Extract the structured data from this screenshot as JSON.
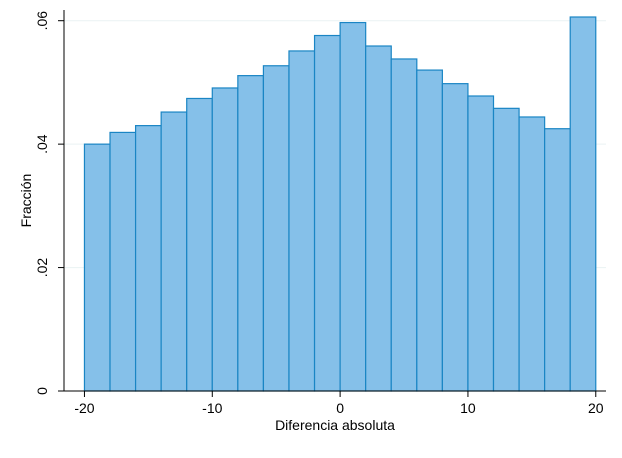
{
  "chart_data": {
    "type": "bar",
    "histogram": true,
    "bin_width": 2,
    "bins": [
      {
        "start": -20,
        "end": -18,
        "value": 0.04
      },
      {
        "start": -18,
        "end": -16,
        "value": 0.0419
      },
      {
        "start": -16,
        "end": -14,
        "value": 0.043
      },
      {
        "start": -14,
        "end": -12,
        "value": 0.0452
      },
      {
        "start": -12,
        "end": -10,
        "value": 0.0474
      },
      {
        "start": -10,
        "end": -8,
        "value": 0.0491
      },
      {
        "start": -8,
        "end": -6,
        "value": 0.0511
      },
      {
        "start": -6,
        "end": -4,
        "value": 0.0527
      },
      {
        "start": -4,
        "end": -2,
        "value": 0.0551
      },
      {
        "start": -2,
        "end": 0,
        "value": 0.0576
      },
      {
        "start": 0,
        "end": 2,
        "value": 0.0597
      },
      {
        "start": 2,
        "end": 4,
        "value": 0.0559
      },
      {
        "start": 4,
        "end": 6,
        "value": 0.0538
      },
      {
        "start": 6,
        "end": 8,
        "value": 0.052
      },
      {
        "start": 8,
        "end": 10,
        "value": 0.0498
      },
      {
        "start": 10,
        "end": 12,
        "value": 0.0478
      },
      {
        "start": 12,
        "end": 14,
        "value": 0.0458
      },
      {
        "start": 14,
        "end": 16,
        "value": 0.0444
      },
      {
        "start": 16,
        "end": 18,
        "value": 0.0425
      },
      {
        "start": 18,
        "end": 20,
        "value": 0.0606
      }
    ],
    "xlabel": "Diferencia absoluta",
    "ylabel": "Fracción",
    "xlim": [
      -21.6,
      20.8
    ],
    "ylim": [
      0,
      0.0606
    ],
    "x_ticks": [
      {
        "value": -20,
        "label": "-20"
      },
      {
        "value": -10,
        "label": "-10"
      },
      {
        "value": 0,
        "label": "0"
      },
      {
        "value": 10,
        "label": "10"
      },
      {
        "value": 20,
        "label": "20"
      }
    ],
    "y_ticks": [
      {
        "value": 0,
        "label": "0"
      },
      {
        "value": 0.02,
        "label": ".02"
      },
      {
        "value": 0.04,
        "label": ".04"
      },
      {
        "value": 0.06,
        "label": ".06"
      }
    ],
    "grid": true,
    "bar_fill": "#85c0e9",
    "bar_stroke": "#1a85c4",
    "gridline_color": "#eaf2f3"
  }
}
